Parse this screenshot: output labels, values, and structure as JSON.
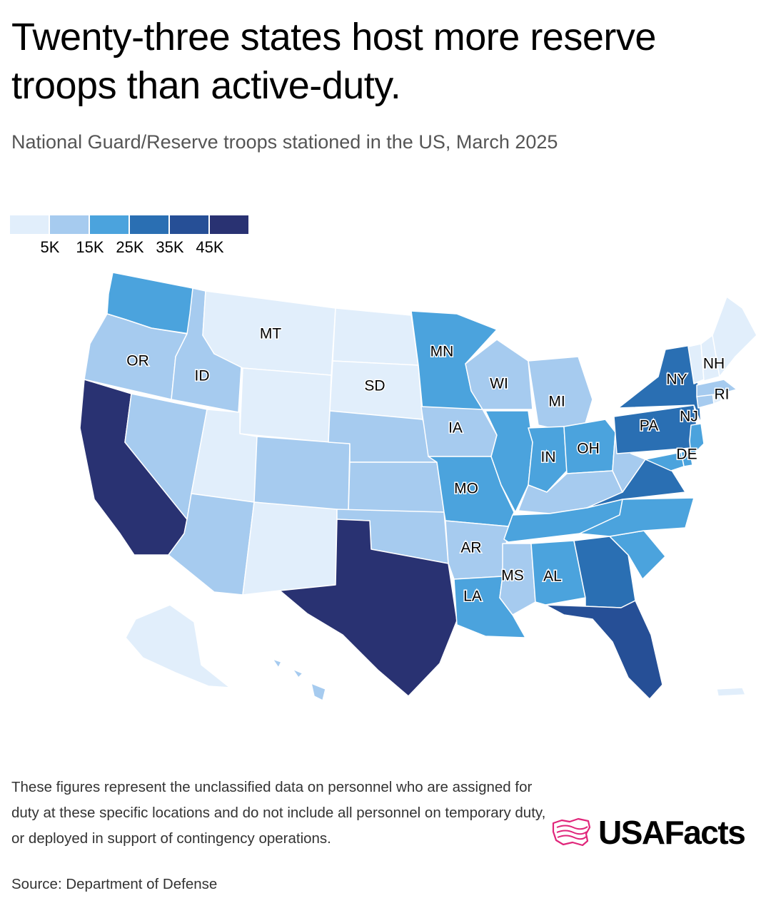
{
  "header": {
    "title": "Twenty-three states host more reserve troops than active-duty.",
    "subtitle": "National Guard/Reserve troops stationed in the US, March 2025"
  },
  "legend": {
    "colors": [
      "#e1eefb",
      "#a6cbef",
      "#4ba3dd",
      "#2a6fb3",
      "#264f96",
      "#293272"
    ],
    "labels": [
      "5K",
      "15K",
      "25K",
      "35K",
      "45K"
    ]
  },
  "map": {
    "states": [
      {
        "code": "WA",
        "label": "",
        "bin": 2
      },
      {
        "code": "OR",
        "label": "OR",
        "bin": 1
      },
      {
        "code": "CA",
        "label": "",
        "bin": 5
      },
      {
        "code": "ID",
        "label": "ID",
        "bin": 1
      },
      {
        "code": "NV",
        "label": "",
        "bin": 1
      },
      {
        "code": "MT",
        "label": "MT",
        "bin": 0
      },
      {
        "code": "WY",
        "label": "",
        "bin": 0
      },
      {
        "code": "UT",
        "label": "",
        "bin": 0
      },
      {
        "code": "AZ",
        "label": "",
        "bin": 1
      },
      {
        "code": "CO",
        "label": "",
        "bin": 1
      },
      {
        "code": "NM",
        "label": "",
        "bin": 0
      },
      {
        "code": "ND",
        "label": "",
        "bin": 0
      },
      {
        "code": "SD",
        "label": "SD",
        "bin": 0
      },
      {
        "code": "NE",
        "label": "",
        "bin": 1
      },
      {
        "code": "KS",
        "label": "",
        "bin": 1
      },
      {
        "code": "OK",
        "label": "",
        "bin": 1
      },
      {
        "code": "TX",
        "label": "",
        "bin": 5
      },
      {
        "code": "MN",
        "label": "MN",
        "bin": 2
      },
      {
        "code": "IA",
        "label": "IA",
        "bin": 1
      },
      {
        "code": "MO",
        "label": "MO",
        "bin": 2
      },
      {
        "code": "AR",
        "label": "AR",
        "bin": 1
      },
      {
        "code": "LA",
        "label": "LA",
        "bin": 2
      },
      {
        "code": "WI",
        "label": "WI",
        "bin": 1
      },
      {
        "code": "IL",
        "label": "",
        "bin": 2
      },
      {
        "code": "MI",
        "label": "MI",
        "bin": 1
      },
      {
        "code": "IN",
        "label": "IN",
        "bin": 2
      },
      {
        "code": "OH",
        "label": "OH",
        "bin": 2
      },
      {
        "code": "KY",
        "label": "",
        "bin": 1
      },
      {
        "code": "TN",
        "label": "",
        "bin": 2
      },
      {
        "code": "MS",
        "label": "MS",
        "bin": 1
      },
      {
        "code": "AL",
        "label": "AL",
        "bin": 2
      },
      {
        "code": "GA",
        "label": "",
        "bin": 3
      },
      {
        "code": "FL",
        "label": "",
        "bin": 4
      },
      {
        "code": "SC",
        "label": "",
        "bin": 2
      },
      {
        "code": "NC",
        "label": "",
        "bin": 2
      },
      {
        "code": "VA",
        "label": "",
        "bin": 3
      },
      {
        "code": "WV",
        "label": "",
        "bin": 1
      },
      {
        "code": "PA",
        "label": "PA",
        "bin": 3
      },
      {
        "code": "NY",
        "label": "NY",
        "bin": 3
      },
      {
        "code": "NJ",
        "label": "NJ",
        "bin": 2
      },
      {
        "code": "DE",
        "label": "DE",
        "bin": 2
      },
      {
        "code": "MD",
        "label": "",
        "bin": 2
      },
      {
        "code": "CT",
        "label": "",
        "bin": 1
      },
      {
        "code": "RI",
        "label": "RI",
        "bin": 0
      },
      {
        "code": "MA",
        "label": "",
        "bin": 1
      },
      {
        "code": "VT",
        "label": "",
        "bin": 0
      },
      {
        "code": "NH",
        "label": "NH",
        "bin": 0
      },
      {
        "code": "ME",
        "label": "",
        "bin": 0
      },
      {
        "code": "AK",
        "label": "",
        "bin": 0
      },
      {
        "code": "HI",
        "label": "",
        "bin": 1
      },
      {
        "code": "PR",
        "label": "",
        "bin": 0
      }
    ]
  },
  "footer": {
    "note": "These figures represent the unclassified data on personnel who are assigned for duty at these specific locations and do not include all personnel on temporary duty, or deployed in support of contingency operations.",
    "source": "Source: Department of Defense",
    "brand": "USAFacts",
    "brand_icon": "usa-map-flag-icon",
    "brand_color": "#e0257a"
  }
}
